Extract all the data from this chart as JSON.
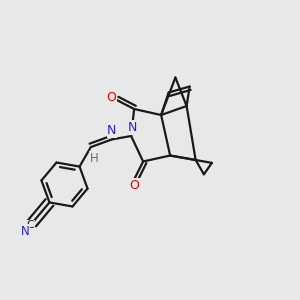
{
  "bg_color": "#e8e8e8",
  "bond_color": "#1a1a1a",
  "bond_width": 1.6,
  "dbo": 0.012,
  "O_color": "#ee0000",
  "N_color": "#2222cc",
  "H_color": "#448844",
  "figsize": [
    3.0,
    3.0
  ],
  "dpi": 100,
  "xlim": [
    0.0,
    1.0
  ],
  "ylim": [
    0.0,
    1.0
  ]
}
